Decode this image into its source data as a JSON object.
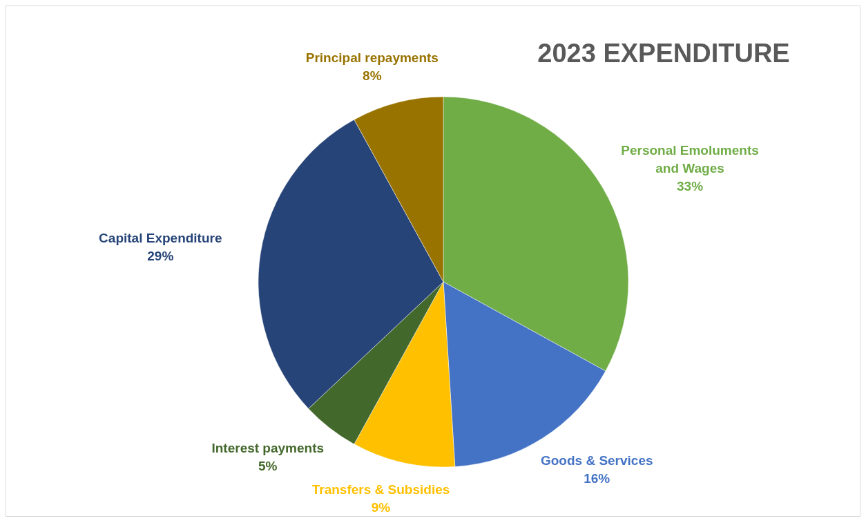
{
  "chart_data": {
    "type": "pie",
    "title": "2023 EXPENDITURE",
    "categories": [
      "Personal Emoluments and Wages",
      "Goods & Services",
      "Transfers & Subsidies",
      "Interest payments",
      "Capital Expenditure",
      "Principal repayments"
    ],
    "values": [
      33,
      16,
      9,
      5,
      29,
      8
    ],
    "colors": [
      "#70ad47",
      "#4472c4",
      "#ffc000",
      "#43682b",
      "#264478",
      "#997300"
    ],
    "value_labels": [
      "33%",
      "16%",
      "9%",
      "5%",
      "29%",
      "8%"
    ]
  }
}
